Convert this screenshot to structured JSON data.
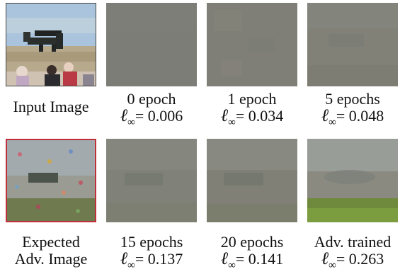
{
  "figure": {
    "top_row": [
      {
        "caption": "Input Image",
        "line2": "",
        "linf": ""
      },
      {
        "caption": "0 epoch",
        "line2": "",
        "linf": "= 0.006"
      },
      {
        "caption": "1 epoch",
        "line2": "",
        "linf": "= 0.034"
      },
      {
        "caption": "5 epochs",
        "line2": "",
        "linf": "= 0.048"
      }
    ],
    "bottom_row": [
      {
        "caption": "Expected",
        "line2": "Adv. Image",
        "linf": ""
      },
      {
        "caption": "15 epochs",
        "line2": "",
        "linf": "= 0.137"
      },
      {
        "caption": "20 epochs",
        "line2": "",
        "linf": "= 0.141"
      },
      {
        "caption": "Adv. trained",
        "line2": "",
        "linf": "= 0.263"
      }
    ],
    "linf_symbol": "ℓ",
    "linf_subscript": "∞"
  },
  "colors": {
    "highlight_border": "#c0303a",
    "perturbation_gray": "#7f7f74"
  }
}
